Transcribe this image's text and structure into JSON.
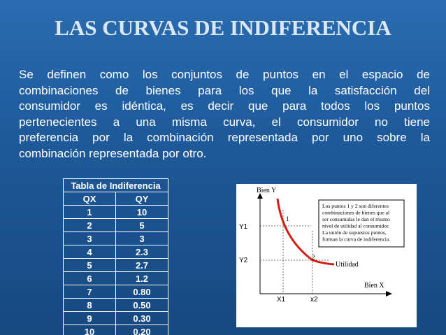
{
  "title": "LAS CURVAS DE INDIFERENCIA",
  "paragraph_lines": [
    "Se definen como los conjuntos de puntos en el espacio de",
    "combinaciones de bienes para los que la satisfacción del",
    "consumidor es idéntica, es decir que para todos los puntos",
    "pertenecientes a una misma curva, el consumidor no tiene",
    "preferencia por la combinación representada por uno sobre la",
    "combinación representada por otro."
  ],
  "table": {
    "caption": "Tabla de Indiferencia",
    "header": [
      "QX",
      "QY"
    ],
    "rows": [
      [
        "1",
        "10"
      ],
      [
        "2",
        "5"
      ],
      [
        "3",
        "3"
      ],
      [
        "4",
        "2.3"
      ],
      [
        "5",
        "2.7"
      ],
      [
        "6",
        "1.2"
      ],
      [
        "7",
        "0.80"
      ],
      [
        "8",
        "0.50"
      ],
      [
        "9",
        "0.30"
      ],
      [
        "10",
        "0.20"
      ]
    ]
  },
  "figure": {
    "y_axis_label": "Bien Y",
    "x_axis_label": "Bien X",
    "y_ticks": [
      "Y1",
      "Y2"
    ],
    "x_ticks": [
      "X1",
      "x2"
    ],
    "points": [
      "1",
      "2"
    ],
    "curve_label": "Utilidad",
    "note_lines": [
      "Los puntos 1 y 2  son diferentes",
      "combinaciones de bienes que al",
      "ser consumidas le dan el mismo",
      "nivel de utilidad al consumidor.",
      "La unión de supuestos puntos,",
      "forman la curva de indiferencia."
    ]
  }
}
